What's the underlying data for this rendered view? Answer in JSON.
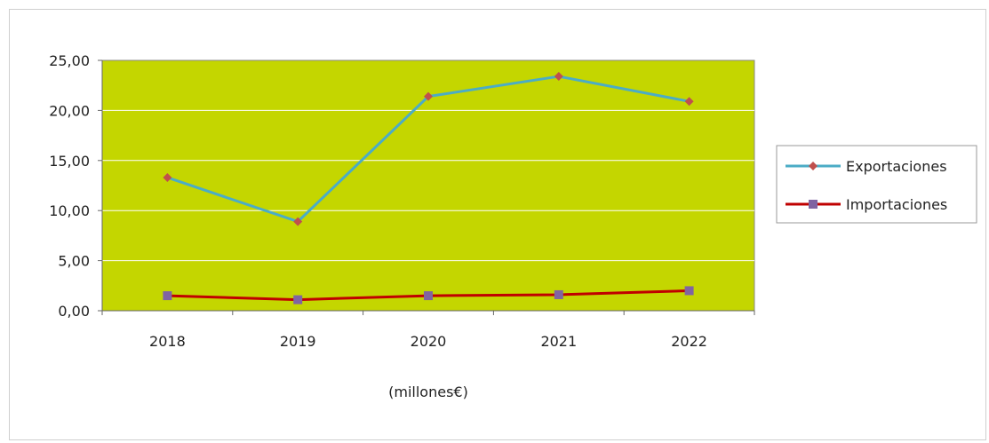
{
  "chart_data": {
    "type": "line",
    "categories": [
      "2018",
      "2019",
      "2020",
      "2021",
      "2022"
    ],
    "series": [
      {
        "name": "Exportaciones",
        "values": [
          13.3,
          8.9,
          21.4,
          23.4,
          20.9
        ],
        "color": "#4bacc6",
        "marker": "diamond",
        "marker_color": "#c0504d"
      },
      {
        "name": "Importaciones",
        "values": [
          1.5,
          1.1,
          1.5,
          1.6,
          2.0
        ],
        "color": "#c00000",
        "marker": "square",
        "marker_color": "#8064a2"
      }
    ],
    "y_ticks": [
      "0,00",
      "5,00",
      "10,00",
      "15,00",
      "20,00",
      "25,00"
    ],
    "ylim": [
      0,
      25
    ],
    "xlabel": "(millones€)",
    "ylabel": "",
    "title": "",
    "grid": true,
    "legend_position": "right",
    "plot_background": "#c4d600",
    "gridline_color": "#ffffff"
  }
}
